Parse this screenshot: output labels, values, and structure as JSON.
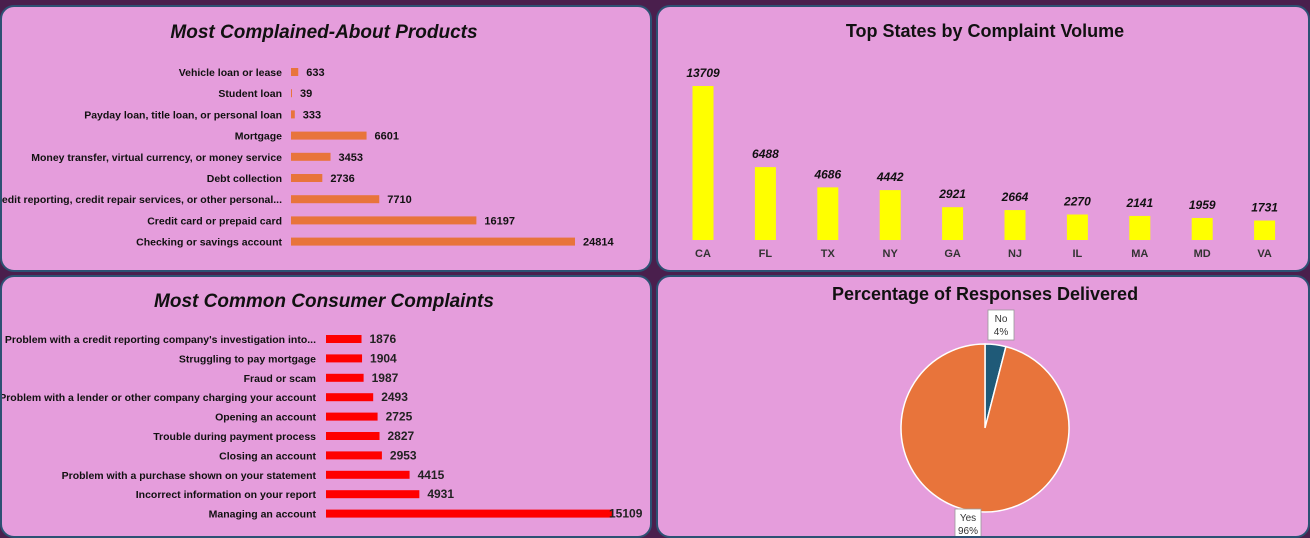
{
  "chart_data": [
    {
      "type": "bar",
      "orientation": "horizontal",
      "title": "Most Complained-About Products",
      "categories": [
        "Vehicle loan or lease",
        "Student loan",
        "Payday loan, title loan, or personal loan",
        "Mortgage",
        "Money transfer, virtual currency, or money service",
        "Debt collection",
        "Credit reporting, credit repair services, or other personal...",
        "Credit card or prepaid card",
        "Checking or savings account"
      ],
      "values": [
        633,
        39,
        333,
        6601,
        3453,
        2736,
        7710,
        16197,
        24814
      ],
      "xlim": [
        0,
        24814
      ],
      "color": "#e8743b"
    },
    {
      "type": "bar",
      "orientation": "vertical",
      "title": "Top States by Complaint Volume",
      "categories": [
        "CA",
        "FL",
        "TX",
        "NY",
        "GA",
        "NJ",
        "IL",
        "MA",
        "MD",
        "VA"
      ],
      "values": [
        13709,
        6488,
        4686,
        4442,
        2921,
        2664,
        2270,
        2141,
        1959,
        1731
      ],
      "ylim": [
        0,
        13709
      ],
      "color": "#ffff00"
    },
    {
      "type": "bar",
      "orientation": "horizontal",
      "title": "Most Common Consumer Complaints",
      "categories": [
        "Problem with a credit reporting company's investigation into...",
        "Struggling to pay mortgage",
        "Fraud or scam",
        "Problem with a lender or other company charging your account",
        "Opening an account",
        "Trouble during payment process",
        "Closing an account",
        "Problem with a purchase shown on your statement",
        "Incorrect information on your report",
        "Managing an account"
      ],
      "values": [
        1876,
        1904,
        1987,
        2493,
        2725,
        2827,
        2953,
        4415,
        4931,
        15109
      ],
      "xlim": [
        0,
        15109
      ],
      "color": "#ff0000"
    },
    {
      "type": "pie",
      "title": "Percentage of Responses Delivered",
      "slices": [
        {
          "label": "No",
          "pct": "4%",
          "value": 4,
          "color": "#1f5a78"
        },
        {
          "label": "Yes",
          "pct": "96%",
          "value": 96,
          "color": "#e8743b"
        }
      ]
    }
  ]
}
